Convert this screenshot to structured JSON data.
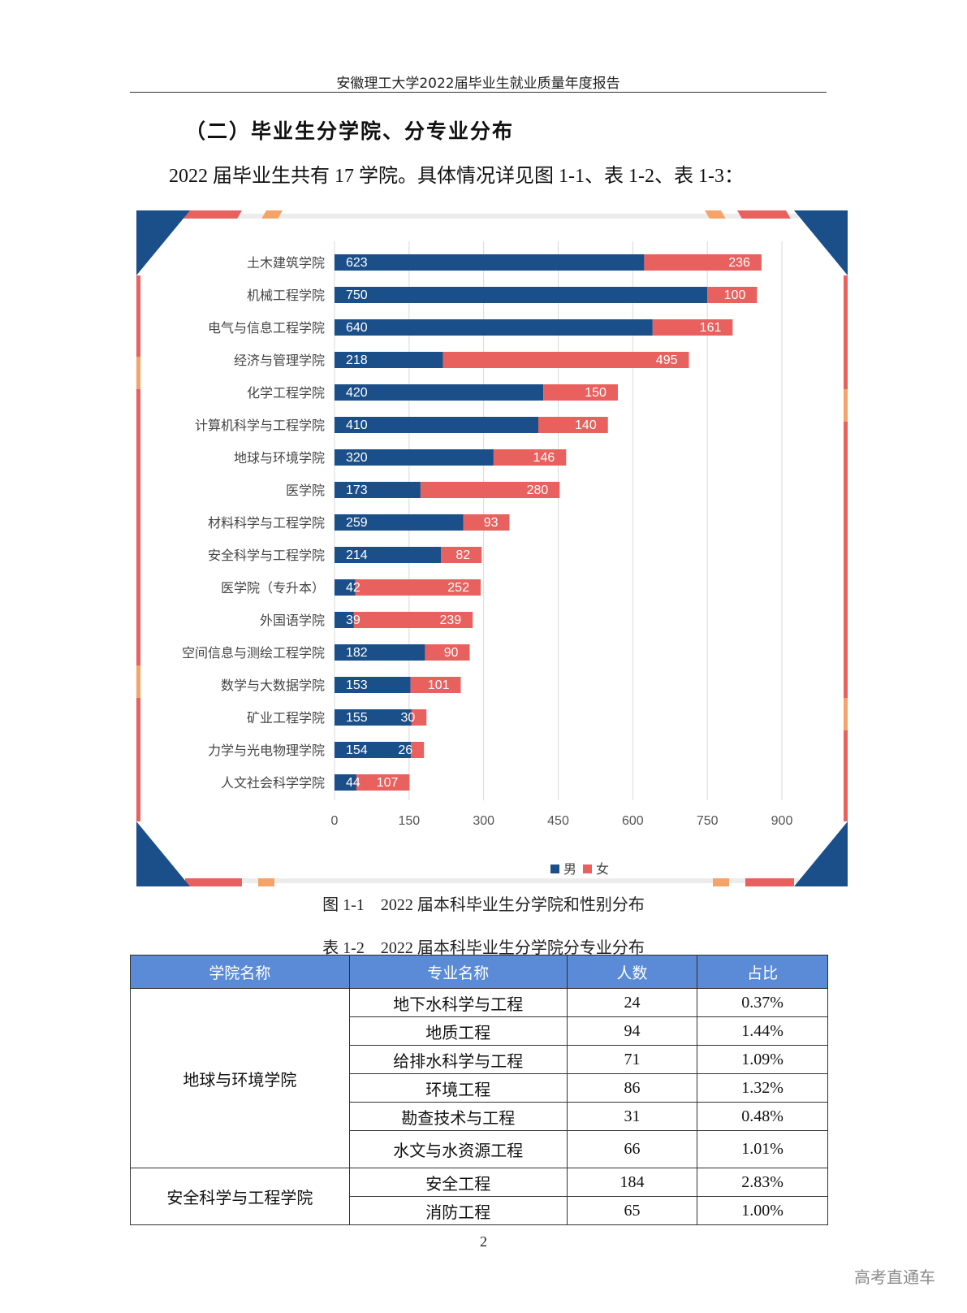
{
  "header": {
    "running_title": "安徽理工大学2022届毕业生就业质量年度报告"
  },
  "section": {
    "title": "（二）毕业生分学院、分专业分布",
    "intro": "2022 届毕业生共有 17 学院。具体情况详见图 1-1、表 1-2、表 1-3："
  },
  "chart_data": {
    "type": "bar",
    "orientation": "horizontal",
    "stacked": true,
    "categories": [
      "土木建筑学院",
      "机械工程学院",
      "电气与信息工程学院",
      "经济与管理学院",
      "化学工程学院",
      "计算机科学与工程学院",
      "地球与环境学院",
      "医学院",
      "材料科学与工程学院",
      "安全科学与工程学院",
      "医学院（专升本）",
      "外国语学院",
      "空间信息与测绘工程学院",
      "数学与大数据学院",
      "矿业工程学院",
      "力学与光电物理学院",
      "人文社会科学学院"
    ],
    "series": [
      {
        "name": "男",
        "color": "#1b4f8a",
        "values": [
          623,
          750,
          640,
          218,
          420,
          410,
          320,
          173,
          259,
          214,
          42,
          39,
          182,
          153,
          155,
          154,
          44
        ]
      },
      {
        "name": "女",
        "color": "#e8615f",
        "values": [
          236,
          100,
          161,
          495,
          150,
          140,
          146,
          280,
          93,
          82,
          252,
          239,
          90,
          101,
          30,
          26,
          107
        ]
      }
    ],
    "xlim": [
      0,
      900
    ],
    "xticks": [
      0,
      150,
      300,
      450,
      600,
      750,
      900
    ],
    "grid": true,
    "legend": "bottom-right",
    "caption": "图 1-1　2022 届本科毕业生分学院和性别分布"
  },
  "table": {
    "caption": "表 1-2　2022 届本科毕业生分学院分专业分布",
    "headers": [
      "学院名称",
      "专业名称",
      "人数",
      "占比"
    ],
    "groups": [
      {
        "college": "地球与环境学院",
        "rows": [
          {
            "major": "地下水科学与工程",
            "count": "24",
            "ratio": "0.37%"
          },
          {
            "major": "地质工程",
            "count": "94",
            "ratio": "1.44%"
          },
          {
            "major": "给排水科学与工程",
            "count": "71",
            "ratio": "1.09%"
          },
          {
            "major": "环境工程",
            "count": "86",
            "ratio": "1.32%"
          },
          {
            "major": "勘查技术与工程",
            "count": "31",
            "ratio": "0.48%"
          },
          {
            "major": "水文与水资源工程",
            "count": "66",
            "ratio": "1.01%"
          }
        ]
      },
      {
        "college": "安全科学与工程学院",
        "rows": [
          {
            "major": "安全工程",
            "count": "184",
            "ratio": "2.83%"
          },
          {
            "major": "消防工程",
            "count": "65",
            "ratio": "1.00%"
          }
        ]
      }
    ]
  },
  "footer": {
    "page_number": "2",
    "watermark": "高考直通车"
  }
}
